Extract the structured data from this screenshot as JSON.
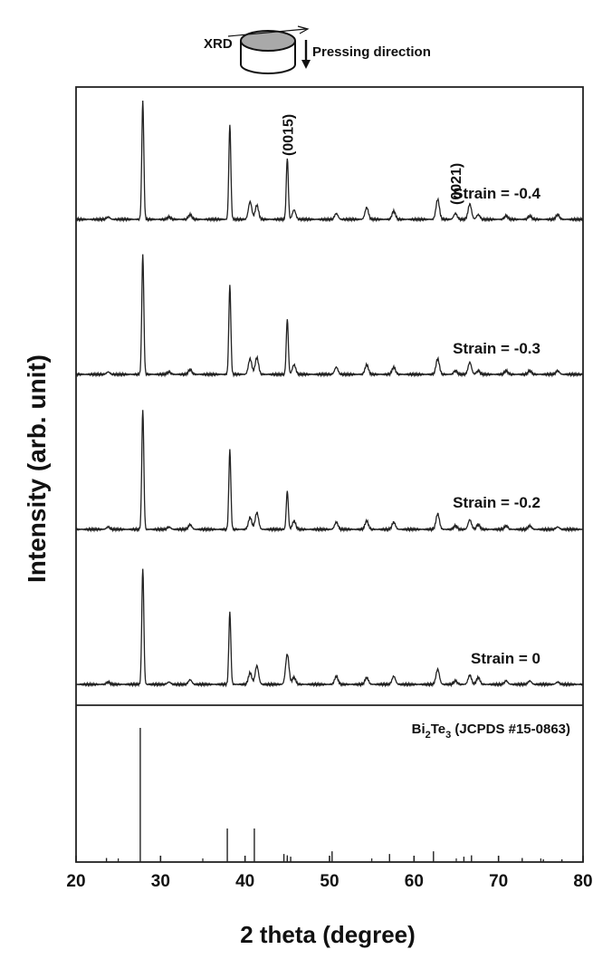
{
  "chart_data": {
    "type": "line",
    "xlabel": "2 theta (degree)",
    "ylabel": "Intensity (arb. unit)",
    "xlim": [
      20,
      80
    ],
    "x_ticks": [
      20,
      30,
      40,
      50,
      60,
      70,
      80
    ],
    "grid": false,
    "inset": {
      "xrd_label": "XRD",
      "pressing_label": "Pressing direction"
    },
    "peak_labels": [
      {
        "text": "(0015)",
        "x": 45.0,
        "series": "Strain = -0.4"
      },
      {
        "text": "(0021)",
        "x": 64.9,
        "series": "Strain = -0.4"
      }
    ],
    "series": [
      {
        "name": "Strain = -0.4",
        "peaks": [
          [
            23.8,
            0.02
          ],
          [
            27.9,
            1.0
          ],
          [
            31.0,
            0.02
          ],
          [
            33.5,
            0.04
          ],
          [
            38.2,
            0.8
          ],
          [
            40.6,
            0.15
          ],
          [
            41.4,
            0.12
          ],
          [
            45.0,
            0.52
          ],
          [
            45.8,
            0.08
          ],
          [
            50.8,
            0.05
          ],
          [
            54.4,
            0.1
          ],
          [
            57.6,
            0.07
          ],
          [
            62.8,
            0.17
          ],
          [
            64.9,
            0.05
          ],
          [
            66.6,
            0.13
          ],
          [
            67.6,
            0.04
          ],
          [
            70.9,
            0.03
          ],
          [
            73.7,
            0.03
          ],
          [
            77.0,
            0.04
          ]
        ]
      },
      {
        "name": "Strain = -0.3",
        "peaks": [
          [
            23.8,
            0.02
          ],
          [
            27.9,
            1.0
          ],
          [
            31.0,
            0.02
          ],
          [
            33.5,
            0.04
          ],
          [
            38.2,
            0.74
          ],
          [
            40.6,
            0.13
          ],
          [
            41.4,
            0.14
          ],
          [
            45.0,
            0.46
          ],
          [
            45.8,
            0.08
          ],
          [
            50.8,
            0.06
          ],
          [
            54.4,
            0.08
          ],
          [
            57.6,
            0.06
          ],
          [
            62.8,
            0.13
          ],
          [
            64.9,
            0.03
          ],
          [
            66.6,
            0.1
          ],
          [
            67.6,
            0.03
          ],
          [
            70.9,
            0.03
          ],
          [
            73.7,
            0.03
          ],
          [
            77.0,
            0.03
          ]
        ]
      },
      {
        "name": "Strain = -0.2",
        "peaks": [
          [
            23.8,
            0.02
          ],
          [
            27.9,
            1.0
          ],
          [
            31.0,
            0.02
          ],
          [
            33.5,
            0.04
          ],
          [
            38.2,
            0.66
          ],
          [
            40.6,
            0.1
          ],
          [
            41.4,
            0.14
          ],
          [
            45.0,
            0.32
          ],
          [
            45.8,
            0.07
          ],
          [
            50.8,
            0.06
          ],
          [
            54.4,
            0.07
          ],
          [
            57.6,
            0.06
          ],
          [
            62.8,
            0.13
          ],
          [
            64.9,
            0.03
          ],
          [
            66.6,
            0.08
          ],
          [
            67.6,
            0.04
          ],
          [
            70.9,
            0.03
          ],
          [
            73.7,
            0.03
          ],
          [
            77.0,
            0.02
          ]
        ]
      },
      {
        "name": "Strain = 0",
        "peaks": [
          [
            23.8,
            0.02
          ],
          [
            27.9,
            1.0
          ],
          [
            31.0,
            0.02
          ],
          [
            33.5,
            0.04
          ],
          [
            38.2,
            0.62
          ],
          [
            40.6,
            0.1
          ],
          [
            41.4,
            0.16
          ],
          [
            45.0,
            0.26
          ],
          [
            45.8,
            0.06
          ],
          [
            50.8,
            0.07
          ],
          [
            54.4,
            0.06
          ],
          [
            57.6,
            0.07
          ],
          [
            62.8,
            0.13
          ],
          [
            64.9,
            0.03
          ],
          [
            66.6,
            0.08
          ],
          [
            67.6,
            0.06
          ],
          [
            70.9,
            0.03
          ],
          [
            73.7,
            0.03
          ],
          [
            77.0,
            0.02
          ]
        ]
      }
    ],
    "reference": {
      "name": "Bi2Te3 (JCPDS #15-0863)",
      "lines": [
        [
          23.6,
          0.03
        ],
        [
          27.6,
          1.0
        ],
        [
          37.9,
          0.25
        ],
        [
          41.1,
          0.25
        ],
        [
          44.6,
          0.06
        ],
        [
          45.0,
          0.05
        ],
        [
          45.4,
          0.04
        ],
        [
          50.3,
          0.08
        ],
        [
          57.1,
          0.06
        ],
        [
          62.3,
          0.08
        ],
        [
          65.9,
          0.04
        ],
        [
          66.8,
          0.05
        ],
        [
          72.8,
          0.03
        ],
        [
          75.3,
          0.02
        ],
        [
          77.5,
          0.02
        ]
      ]
    }
  }
}
